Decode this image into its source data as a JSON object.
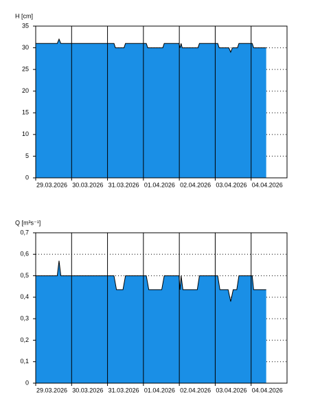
{
  "chart_data": [
    {
      "type": "area",
      "y_label": "H [cm]",
      "color": "#1a8fe6",
      "grid": true,
      "x": [
        0,
        0.6,
        0.65,
        0.7,
        2.18,
        2.22,
        2.46,
        2.5,
        3.08,
        3.12,
        3.54,
        3.58,
        3.99,
        4.02,
        4.05,
        4.08,
        4.52,
        4.56,
        5.07,
        5.11,
        5.38,
        5.43,
        5.48,
        5.62,
        5.66,
        6.03,
        6.07,
        6.42
      ],
      "values": [
        31,
        31,
        32,
        31,
        31,
        30,
        30,
        31,
        31,
        30,
        30,
        31,
        31,
        30,
        31,
        30,
        30,
        31,
        31,
        30,
        30,
        29,
        30,
        30,
        31,
        31,
        30,
        30
      ],
      "xlim": [
        0,
        7
      ],
      "xticks": [
        {
          "value": 0,
          "label": "29.03.2026"
        },
        {
          "value": 1,
          "label": "30.03.2026"
        },
        {
          "value": 2,
          "label": "31.03.2026"
        },
        {
          "value": 3,
          "label": "01.04.2026"
        },
        {
          "value": 4,
          "label": "02.04.2026"
        },
        {
          "value": 5,
          "label": "03.04.2026"
        },
        {
          "value": 6,
          "label": "04.04.2026"
        }
      ],
      "ylim": [
        0,
        35
      ],
      "yticks": [
        0,
        5,
        10,
        15,
        20,
        25,
        30,
        35
      ]
    },
    {
      "type": "area",
      "y_label": "Q [m³s⁻¹]",
      "color": "#1a8fe6",
      "grid": true,
      "x": [
        0,
        0.6,
        0.65,
        0.7,
        2.18,
        2.25,
        2.43,
        2.5,
        3.08,
        3.15,
        3.51,
        3.58,
        3.99,
        4.02,
        4.05,
        4.1,
        4.5,
        4.56,
        5.07,
        5.13,
        5.36,
        5.43,
        5.5,
        5.6,
        5.66,
        6.03,
        6.07,
        6.42
      ],
      "values": [
        0.5,
        0.5,
        0.57,
        0.5,
        0.5,
        0.435,
        0.435,
        0.5,
        0.5,
        0.435,
        0.435,
        0.5,
        0.5,
        0.435,
        0.5,
        0.435,
        0.435,
        0.5,
        0.5,
        0.435,
        0.435,
        0.38,
        0.435,
        0.435,
        0.5,
        0.5,
        0.435,
        0.435
      ],
      "xlim": [
        0,
        7
      ],
      "xticks": [
        {
          "value": 0,
          "label": "29.03.2026"
        },
        {
          "value": 1,
          "label": "30.03.2026"
        },
        {
          "value": 2,
          "label": "31.03.2026"
        },
        {
          "value": 3,
          "label": "01.04.2026"
        },
        {
          "value": 4,
          "label": "02.04.2026"
        },
        {
          "value": 5,
          "label": "03.04.2026"
        },
        {
          "value": 6,
          "label": "04.04.2026"
        }
      ],
      "ylim": [
        0,
        0.7
      ],
      "yticks": [
        0,
        {
          "value": 0.1,
          "label": "0,1"
        },
        {
          "value": 0.2,
          "label": "0,2"
        },
        {
          "value": 0.3,
          "label": "0,3"
        },
        {
          "value": 0.4,
          "label": "0,4"
        },
        {
          "value": 0.5,
          "label": "0,5"
        },
        {
          "value": 0.6,
          "label": "0,6"
        },
        {
          "value": 0.7,
          "label": "0,7"
        }
      ]
    }
  ]
}
